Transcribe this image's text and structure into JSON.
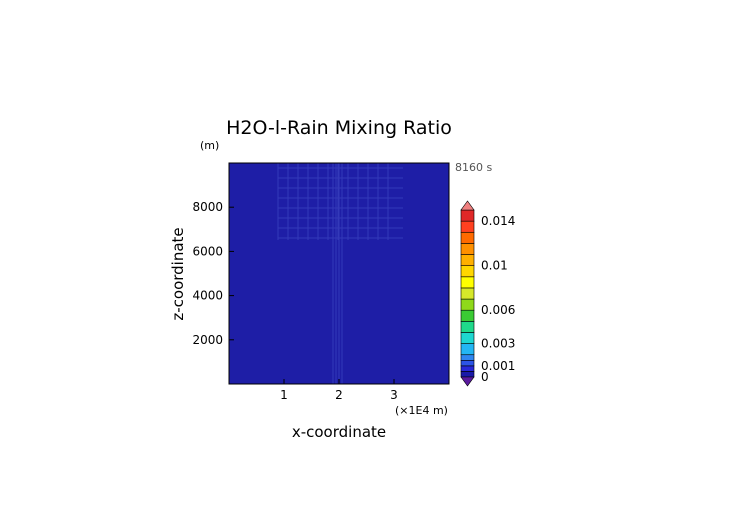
{
  "chart_data": {
    "type": "heatmap",
    "title": "H2O-l-Rain Mixing Ratio",
    "time_label": "8160 s",
    "xlabel": "x-coordinate",
    "ylabel": "z-coordinate",
    "x_unit_label": "(×1E4 m)",
    "y_unit_label": "(m)",
    "x_ticks": [
      1,
      2,
      3
    ],
    "x_tick_labels": [
      "1",
      "2",
      "3"
    ],
    "xlim": [
      0,
      4
    ],
    "y_ticks": [
      2000,
      4000,
      6000,
      8000
    ],
    "y_tick_labels": [
      "2000",
      "4000",
      "6000",
      "8000"
    ],
    "ylim": [
      0,
      10000
    ],
    "colorbar": {
      "tick_values": [
        0,
        0.001,
        0.003,
        0.006,
        0.01,
        0.014
      ],
      "tick_labels": [
        "0",
        "0.001",
        "0.003",
        "0.006",
        "0.01",
        "0.014"
      ],
      "levels": [
        0,
        0.0005,
        0.001,
        0.0015,
        0.002,
        0.003,
        0.004,
        0.005,
        0.006,
        0.007,
        0.008,
        0.009,
        0.01,
        0.011,
        0.012,
        0.013,
        0.014,
        0.015
      ],
      "colors": [
        "#1a1aa8",
        "#2828d8",
        "#2c54e6",
        "#2f86f0",
        "#23b6f4",
        "#1ed7d0",
        "#1fd98a",
        "#3acb34",
        "#8fd91a",
        "#d6e82a",
        "#ffff00",
        "#ffd700",
        "#ffb000",
        "#ff9000",
        "#ff6a00",
        "#ff4020",
        "#e02828"
      ],
      "under_color": "#5a1a9e",
      "over_color": "#f08080"
    },
    "field": {
      "background_value": 0,
      "background_color": "#1e1ea6",
      "description_value": "near-zero rain mixing ratio throughout domain"
    }
  }
}
